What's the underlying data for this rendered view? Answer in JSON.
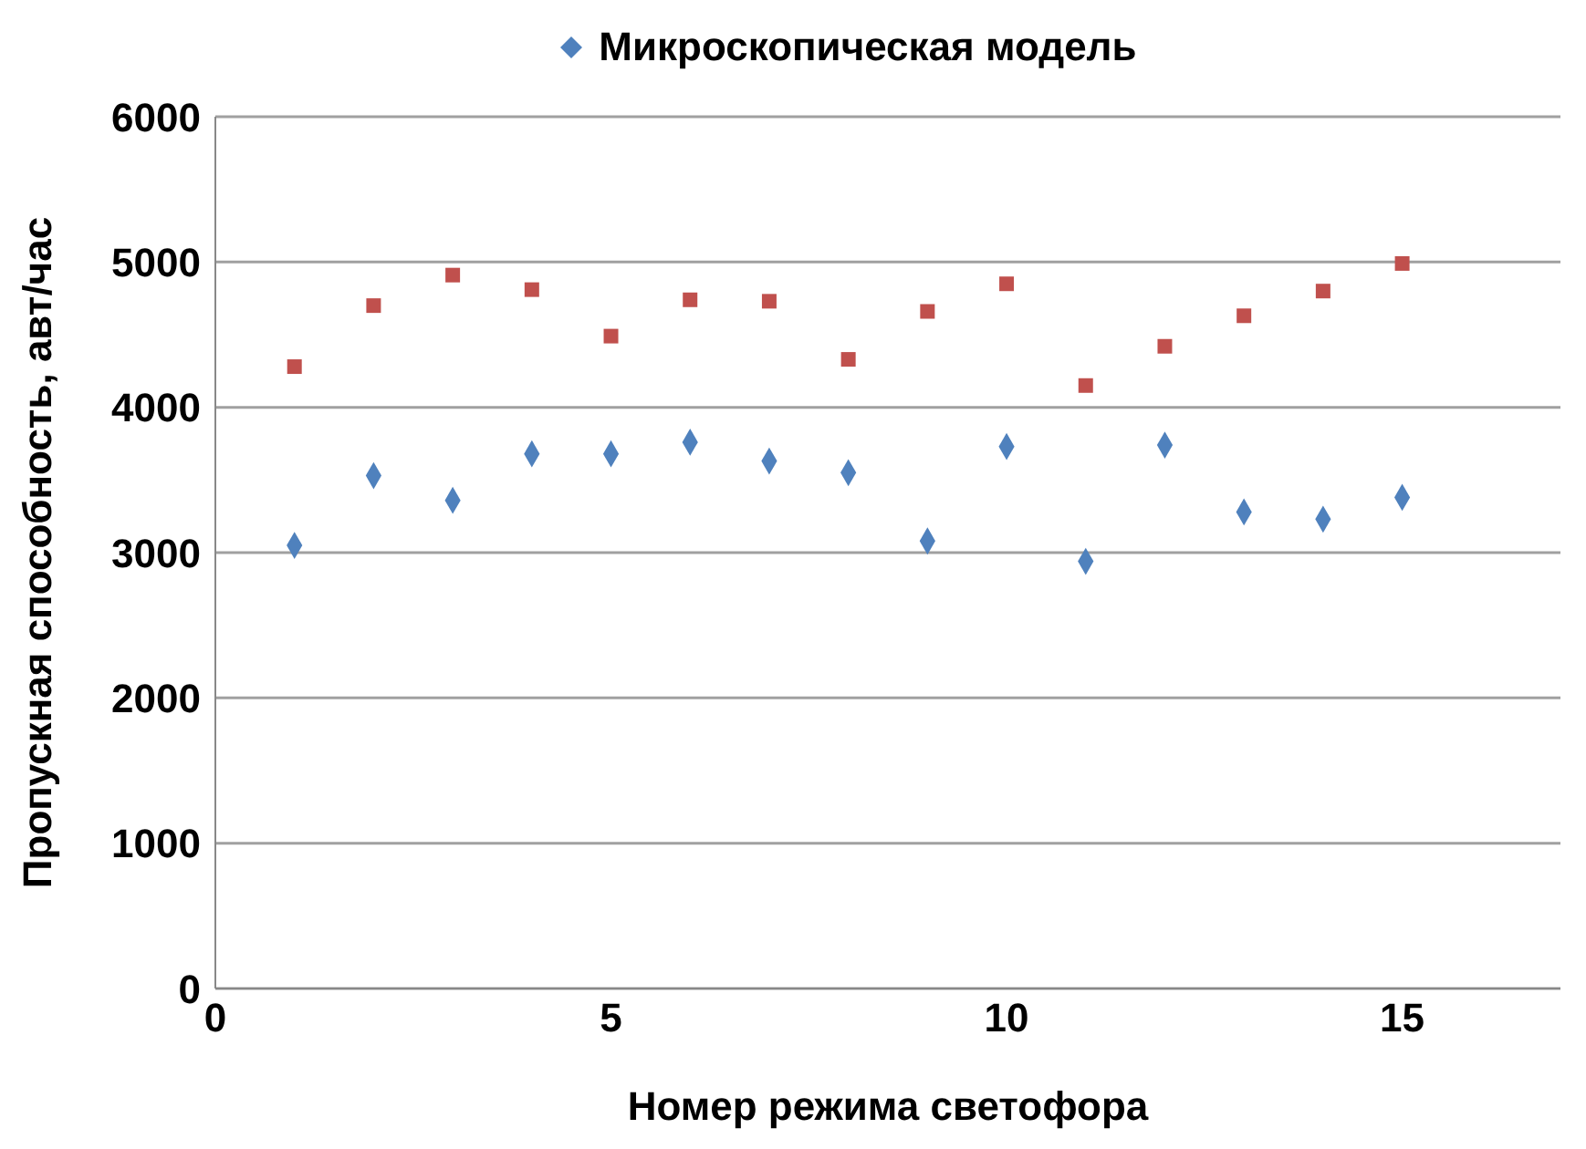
{
  "chart_data": {
    "type": "scatter",
    "xlabel": "Номер режима светофора",
    "ylabel": "Пропускная способность, авт/час",
    "x": [
      1,
      2,
      3,
      4,
      5,
      6,
      7,
      8,
      9,
      10,
      11,
      12,
      13,
      14,
      15
    ],
    "series": [
      {
        "name": "Микроскопическая модель",
        "color": "#4f81bd",
        "marker": "diamond",
        "values": [
          3050,
          3530,
          3360,
          3680,
          3680,
          3760,
          3630,
          3550,
          3080,
          3730,
          2940,
          3740,
          3280,
          3230,
          3380
        ]
      },
      {
        "color": "#c0504d",
        "marker": "square",
        "values": [
          4280,
          4700,
          4910,
          4810,
          4490,
          4740,
          4730,
          4330,
          4660,
          4850,
          4150,
          4420,
          4630,
          4800,
          4990
        ]
      }
    ],
    "xlim": [
      0,
      17
    ],
    "xticks": [
      0,
      5,
      10,
      15
    ],
    "ylim": [
      0,
      6000
    ],
    "yticks": [
      0,
      1000,
      2000,
      3000,
      4000,
      5000,
      6000
    ],
    "grid": "y",
    "legend": "top"
  }
}
